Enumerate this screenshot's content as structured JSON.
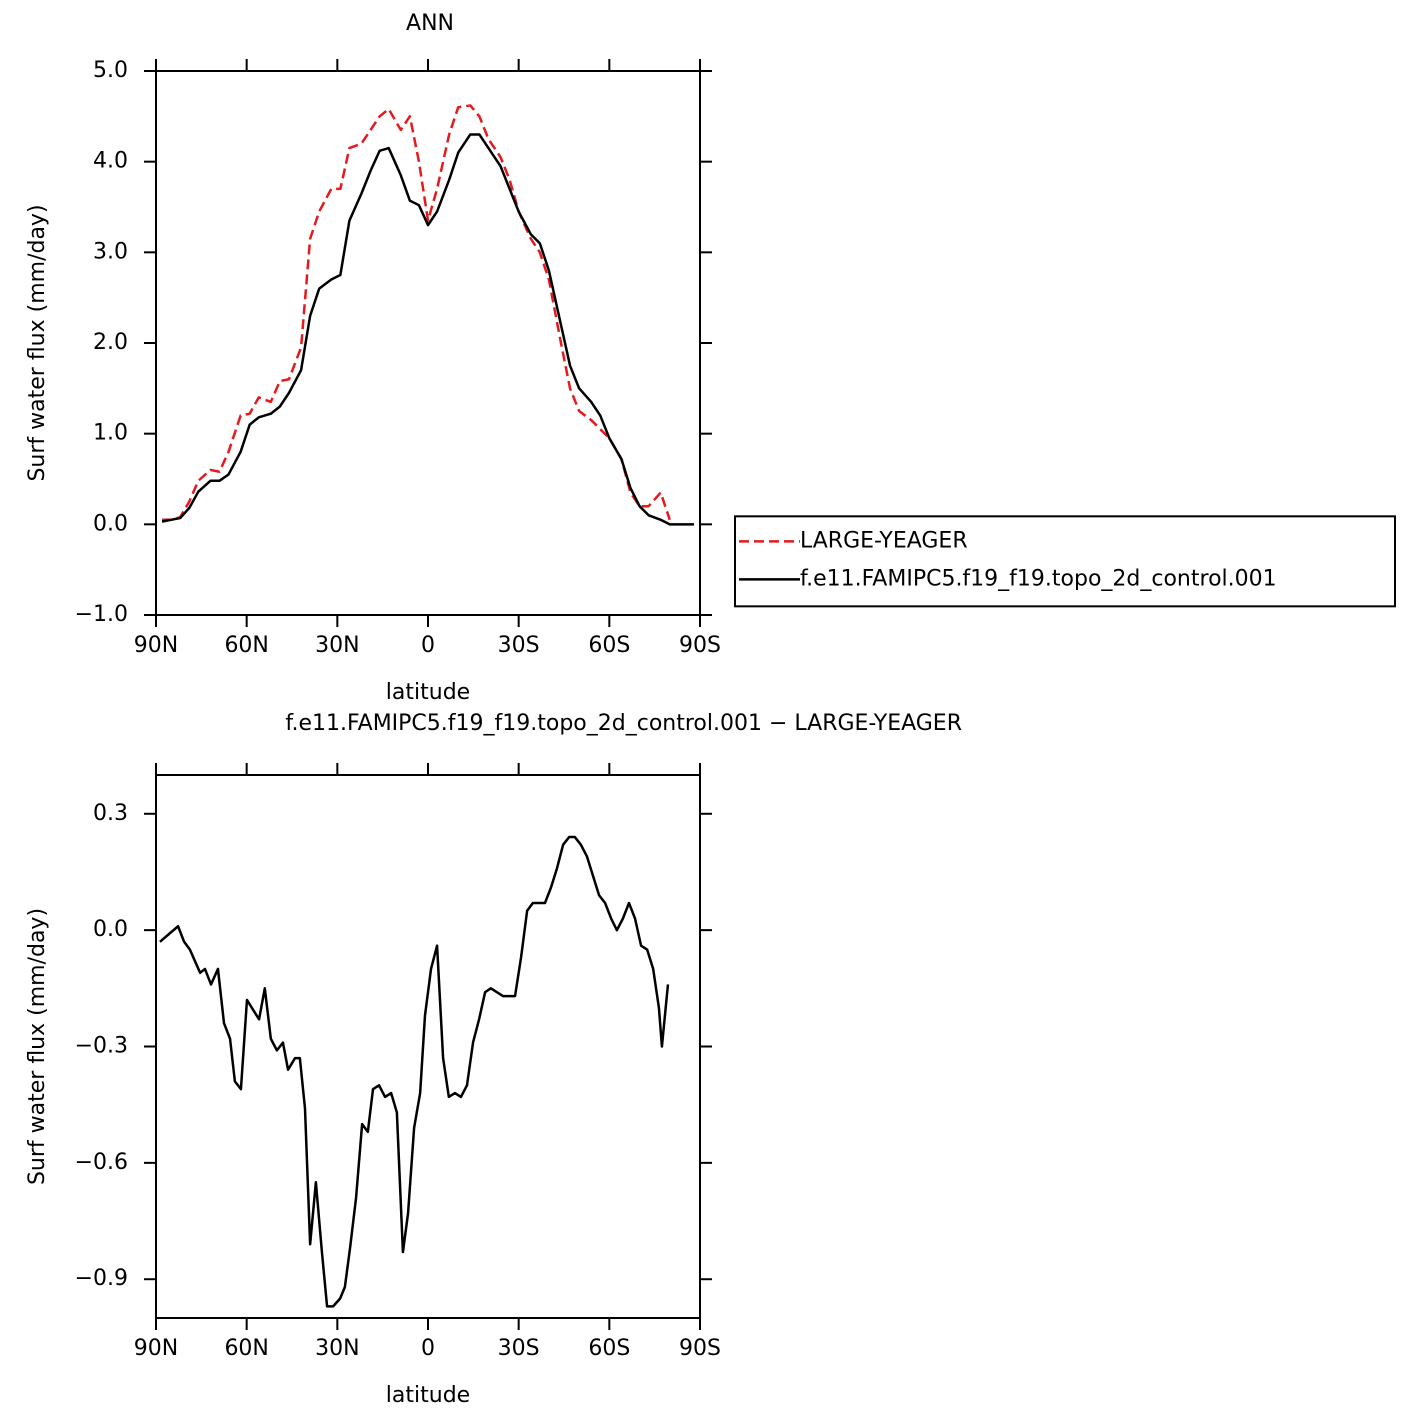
{
  "chart_data": [
    {
      "type": "line",
      "title": "ANN",
      "xlabel": "latitude",
      "ylabel": "Surf water flux (mm/day)",
      "x": [
        88,
        85,
        82,
        79,
        76,
        72,
        69,
        66,
        62,
        59,
        56,
        52,
        49,
        46,
        42,
        39,
        36,
        32,
        29,
        26,
        22,
        19,
        16,
        13,
        9,
        6,
        3,
        0,
        -3,
        -7,
        -10,
        -14,
        -17,
        -20,
        -24,
        -27,
        -30,
        -34,
        -37,
        -40,
        -44,
        -47,
        -50,
        -54,
        -57,
        -60,
        -64,
        -67,
        -70,
        -73,
        -77,
        -80,
        -83,
        -88
      ],
      "series": [
        {
          "name": "LARGE-YEAGER",
          "color": "#e41a1c",
          "linestyle": "dashed",
          "values": [
            0.05,
            0.05,
            0.08,
            0.25,
            0.48,
            0.6,
            0.58,
            0.8,
            1.2,
            1.22,
            1.4,
            1.35,
            1.58,
            1.6,
            1.95,
            3.15,
            3.45,
            3.7,
            3.7,
            4.15,
            4.2,
            4.35,
            4.5,
            4.58,
            4.35,
            4.5,
            4.0,
            3.35,
            3.7,
            4.3,
            4.6,
            4.62,
            4.5,
            4.25,
            4.05,
            3.8,
            3.45,
            3.15,
            3.0,
            2.7,
            2.0,
            1.5,
            1.25,
            1.15,
            1.05,
            0.95,
            0.72,
            0.35,
            0.2,
            0.2,
            0.35,
            0.05,
            null,
            null
          ]
        },
        {
          "name": "f.e11.FAMIPC5.f19_f19.topo_2d_control.001",
          "color": "#000000",
          "linestyle": "solid",
          "values": [
            0.03,
            0.05,
            0.07,
            0.18,
            0.36,
            0.48,
            0.48,
            0.55,
            0.8,
            1.1,
            1.18,
            1.22,
            1.3,
            1.45,
            1.7,
            2.3,
            2.6,
            2.7,
            2.75,
            3.35,
            3.65,
            3.9,
            4.12,
            4.15,
            3.85,
            3.57,
            3.52,
            3.3,
            3.45,
            3.8,
            4.1,
            4.3,
            4.3,
            4.15,
            3.95,
            3.7,
            3.45,
            3.2,
            3.1,
            2.8,
            2.2,
            1.75,
            1.5,
            1.35,
            1.2,
            0.95,
            0.72,
            0.4,
            0.2,
            0.1,
            0.05,
            0.0,
            0.0,
            0.0
          ]
        }
      ],
      "xlim": [
        90,
        -90
      ],
      "xticks": [
        {
          "value": 90,
          "label": "90N"
        },
        {
          "value": 60,
          "label": "60N"
        },
        {
          "value": 30,
          "label": "30N"
        },
        0,
        {
          "value": -30,
          "label": "30S"
        },
        {
          "value": -60,
          "label": "60S"
        },
        {
          "value": -90,
          "label": "90S"
        }
      ],
      "ylim": [
        -1.0,
        5.0
      ],
      "yticks": [
        {
          "value": -1,
          "label": "−1.0"
        },
        {
          "value": 0,
          "label": "0.0"
        },
        {
          "value": 1,
          "label": "1.0"
        },
        {
          "value": 2,
          "label": "2.0"
        },
        {
          "value": 3,
          "label": "3.0"
        },
        {
          "value": 4,
          "label": "4.0"
        },
        {
          "value": 5,
          "label": "5.0"
        }
      ],
      "legend": "right"
    },
    {
      "type": "line",
      "title": "f.e11.FAMIPC5.f19_f19.topo_2d_control.001 − LARGE-YEAGER",
      "xlabel": "latitude",
      "ylabel": "Surf water flux (mm/day)",
      "x": [
        88.7,
        82.7,
        80.7,
        78.8,
        75.4,
        73.8,
        71.8,
        69.5,
        67.5,
        65.5,
        63.9,
        61.9,
        59.9,
        55.9,
        54.0,
        52.0,
        50.0,
        48.0,
        46.3,
        44.0,
        42.4,
        40.7,
        39.0,
        37.1,
        35.1,
        33.4,
        31.4,
        29.1,
        27.5,
        25.8,
        23.8,
        21.8,
        19.9,
        18.2,
        16.2,
        14.2,
        12.2,
        10.3,
        8.3,
        6.6,
        4.6,
        2.6,
        1.0,
        -1.0,
        -3.0,
        -5.0,
        -6.9,
        -8.9,
        -10.9,
        -12.9,
        -14.9,
        -16.9,
        -18.9,
        -20.8,
        -22.8,
        -24.8,
        -26.8,
        -28.8,
        -30.8,
        -32.8,
        -34.7,
        -36.7,
        -38.7,
        -40.7,
        -42.7,
        -44.7,
        -46.7,
        -48.6,
        -50.6,
        -52.6,
        -54.6,
        -56.6,
        -58.6,
        -60.6,
        -62.5,
        -64.5,
        -66.5,
        -68.5,
        -70.5,
        -72.5,
        -74.5,
        -76.4,
        -77.4,
        -79.4
      ],
      "series": [
        {
          "color": "#000000",
          "linestyle": "solid",
          "values": [
            -0.03,
            0.01,
            -0.03,
            -0.05,
            -0.11,
            -0.1,
            -0.14,
            -0.1,
            -0.24,
            -0.28,
            -0.39,
            -0.41,
            -0.18,
            -0.23,
            -0.15,
            -0.28,
            -0.31,
            -0.29,
            -0.36,
            -0.33,
            -0.33,
            -0.46,
            -0.81,
            -0.65,
            -0.83,
            -0.97,
            -0.97,
            -0.95,
            -0.92,
            -0.82,
            -0.69,
            -0.5,
            -0.52,
            -0.41,
            -0.4,
            -0.43,
            -0.42,
            -0.47,
            -0.83,
            -0.73,
            -0.51,
            -0.42,
            -0.22,
            -0.1,
            -0.04,
            -0.33,
            -0.43,
            -0.42,
            -0.43,
            -0.4,
            -0.29,
            -0.23,
            -0.16,
            -0.15,
            -0.16,
            -0.17,
            -0.17,
            -0.17,
            -0.07,
            0.05,
            0.07,
            0.07,
            0.07,
            0.11,
            0.16,
            0.22,
            0.24,
            0.24,
            0.22,
            0.19,
            0.14,
            0.09,
            0.07,
            0.03,
            0.0,
            0.03,
            0.07,
            0.03,
            -0.04,
            -0.05,
            -0.1,
            -0.2,
            -0.3,
            -0.14
          ]
        }
      ],
      "xlim": [
        90,
        -90
      ],
      "xticks": [
        {
          "value": 90,
          "label": "90N"
        },
        {
          "value": 60,
          "label": "60N"
        },
        {
          "value": 30,
          "label": "30N"
        },
        0,
        {
          "value": -30,
          "label": "30S"
        },
        {
          "value": -60,
          "label": "60S"
        },
        {
          "value": -90,
          "label": "90S"
        }
      ],
      "ylim": [
        -1.0,
        0.4
      ],
      "yticks": [
        {
          "value": -0.9,
          "label": "−0.9"
        },
        {
          "value": -0.6,
          "label": "−0.6"
        },
        {
          "value": -0.3,
          "label": "−0.3"
        },
        {
          "value": 0,
          "label": "0.0"
        },
        0.3
      ]
    }
  ]
}
